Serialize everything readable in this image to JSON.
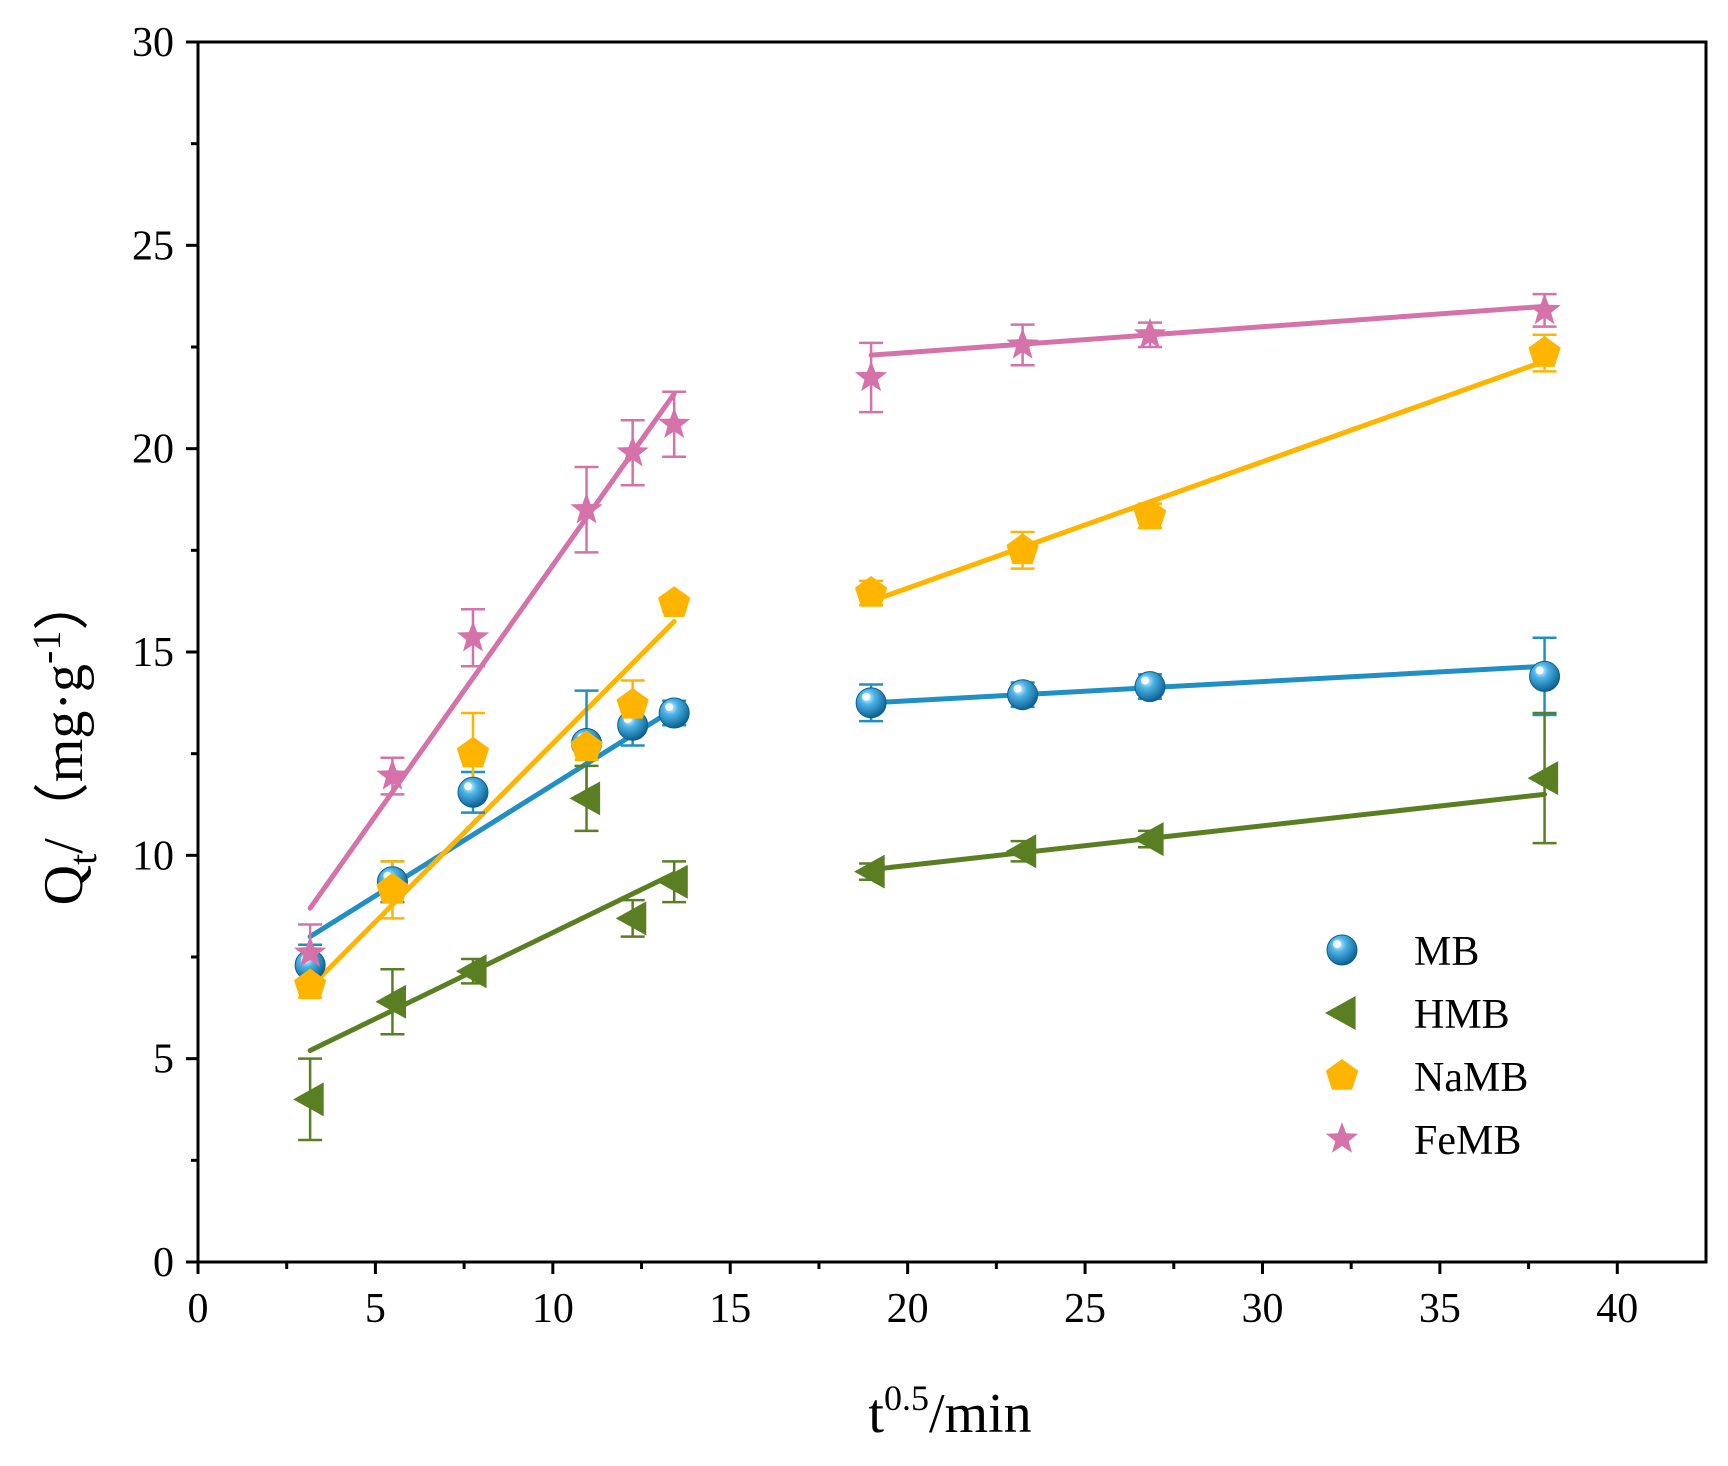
{
  "chart_data": {
    "type": "scatter",
    "title": "",
    "xlabel": {
      "base": "t",
      "sup": "0.5",
      "rest": "/min"
    },
    "ylabel": {
      "base": "Q",
      "sub": "t",
      "rest": "/（mg·g",
      "sup": "-1",
      "close": "）"
    },
    "xlim": [
      0,
      42.5
    ],
    "ylim": [
      0,
      30
    ],
    "xticks": [
      0,
      5,
      10,
      15,
      20,
      25,
      30,
      35,
      40
    ],
    "yticks": [
      0,
      5,
      10,
      15,
      20,
      25,
      30
    ],
    "x_tick_labels": [
      "0",
      "5",
      "10",
      "15",
      "20",
      "25",
      "30",
      "35",
      "40"
    ],
    "y_tick_labels": [
      "0",
      "5",
      "10",
      "15",
      "20",
      "25",
      "30"
    ],
    "grid": false,
    "legend_position": "bottom-right",
    "series": [
      {
        "name": "MB",
        "marker": "sphere",
        "color": "#1f8fc4",
        "x": [
          3.16,
          5.48,
          7.75,
          10.95,
          12.25,
          13.42,
          18.97,
          23.24,
          26.83,
          37.95
        ],
        "y": [
          7.3,
          9.35,
          11.55,
          12.75,
          13.2,
          13.5,
          13.75,
          13.95,
          14.15,
          14.4
        ],
        "err": [
          0.5,
          0.5,
          0.5,
          1.3,
          0.5,
          0.3,
          0.45,
          0.3,
          0.3,
          0.95
        ],
        "fits": [
          [
            [
              3.16,
              8.0
            ],
            [
              13.42,
              13.6
            ]
          ],
          [
            [
              18.97,
              13.75
            ],
            [
              37.95,
              14.65
            ]
          ]
        ]
      },
      {
        "name": "HMB",
        "marker": "triangle-left",
        "color": "#5a7f22",
        "x": [
          3.16,
          5.48,
          7.75,
          10.95,
          12.25,
          13.42,
          18.97,
          23.24,
          26.83,
          37.95
        ],
        "y": [
          4.0,
          6.4,
          7.15,
          11.4,
          8.45,
          9.35,
          9.6,
          10.1,
          10.4,
          11.9
        ],
        "err": [
          1.0,
          0.8,
          0.3,
          0.8,
          0.45,
          0.5,
          0.2,
          0.25,
          0.2,
          1.6
        ],
        "fits": [
          [
            [
              3.16,
              5.2
            ],
            [
              13.42,
              9.55
            ]
          ],
          [
            [
              18.97,
              9.65
            ],
            [
              37.95,
              11.5
            ]
          ]
        ]
      },
      {
        "name": "NaMB",
        "marker": "pentagon",
        "color": "#ffb400",
        "x": [
          3.16,
          5.48,
          7.75,
          10.95,
          12.25,
          13.42,
          18.97,
          23.24,
          26.83,
          37.95
        ],
        "y": [
          6.8,
          9.15,
          12.5,
          12.65,
          13.7,
          16.2,
          16.45,
          17.5,
          18.35,
          22.35
        ],
        "err": [
          0.3,
          0.7,
          1.0,
          0.3,
          0.6,
          0.2,
          0.3,
          0.45,
          0.3,
          0.45
        ],
        "fits": [
          [
            [
              3.16,
              6.75
            ],
            [
              13.42,
              15.75
            ]
          ],
          [
            [
              18.97,
              16.25
            ],
            [
              37.95,
              22.15
            ]
          ]
        ]
      },
      {
        "name": "FeMB",
        "marker": "star",
        "color": "#d472a9",
        "x": [
          3.16,
          5.48,
          7.75,
          10.95,
          12.25,
          13.42,
          18.97,
          23.24,
          26.83,
          37.95
        ],
        "y": [
          7.6,
          11.95,
          15.35,
          18.5,
          19.9,
          20.6,
          21.75,
          22.55,
          22.8,
          23.4
        ],
        "err": [
          0.7,
          0.45,
          0.7,
          1.05,
          0.8,
          0.8,
          0.85,
          0.5,
          0.3,
          0.4
        ],
        "fits": [
          [
            [
              3.16,
              8.7
            ],
            [
              13.42,
              21.35
            ]
          ],
          [
            [
              18.97,
              22.3
            ],
            [
              37.95,
              23.5
            ]
          ]
        ]
      }
    ]
  }
}
